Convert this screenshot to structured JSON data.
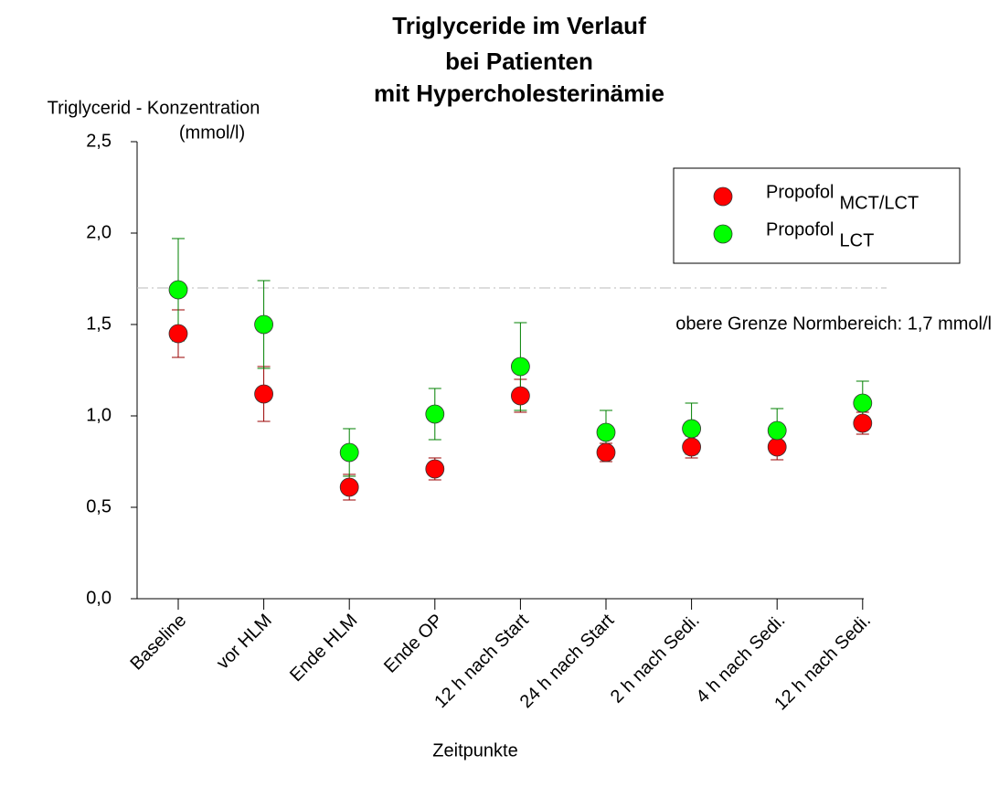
{
  "chart_data": {
    "type": "errorbar",
    "title": [
      "Triglyceride im Verlauf",
      "bei Patienten",
      "mit Hypercholesterinämie"
    ],
    "y_label": [
      "Triglycerid - Konzentration",
      "(mmol/l)"
    ],
    "x_label": "Zeitpunkte",
    "categories": [
      "Baseline",
      "vor HLM",
      "Ende HLM",
      "Ende OP",
      "12 h nach Start",
      "24 h nach Start",
      "2 h nach Sedi.",
      "4 h nach Sedi.",
      "12 h nach Sedi."
    ],
    "series": [
      {
        "name": "Propofol",
        "subscript": "MCT/LCT",
        "color": "#ff0000",
        "error_color": "#990000",
        "values": [
          1.45,
          1.12,
          0.61,
          0.71,
          1.11,
          0.8,
          0.83,
          0.83,
          0.96
        ],
        "errors": [
          0.13,
          0.15,
          0.07,
          0.06,
          0.09,
          0.05,
          0.06,
          0.07,
          0.06
        ]
      },
      {
        "name": "Propofol",
        "subscript": "LCT",
        "color": "#00ff00",
        "error_color": "#008000",
        "values": [
          1.69,
          1.5,
          0.8,
          1.01,
          1.27,
          0.91,
          0.93,
          0.92,
          1.07
        ],
        "errors": [
          0.28,
          0.24,
          0.13,
          0.14,
          0.24,
          0.12,
          0.14,
          0.12,
          0.12
        ]
      }
    ],
    "ylim": [
      0,
      2.5
    ],
    "yticks": [
      {
        "value": 0,
        "label": "0,0"
      },
      {
        "value": 0.5,
        "label": "0,5"
      },
      {
        "value": 1,
        "label": "1,0"
      },
      {
        "value": 1.5,
        "label": "1,5"
      },
      {
        "value": 2,
        "label": "2,0"
      },
      {
        "value": 2.5,
        "label": "2,5"
      }
    ],
    "reference_line": {
      "value": 1.7,
      "label": "obere Grenze Normbereich: 1,7 mmol/l",
      "color": "#bbbbbb"
    },
    "legend": "upper right"
  }
}
